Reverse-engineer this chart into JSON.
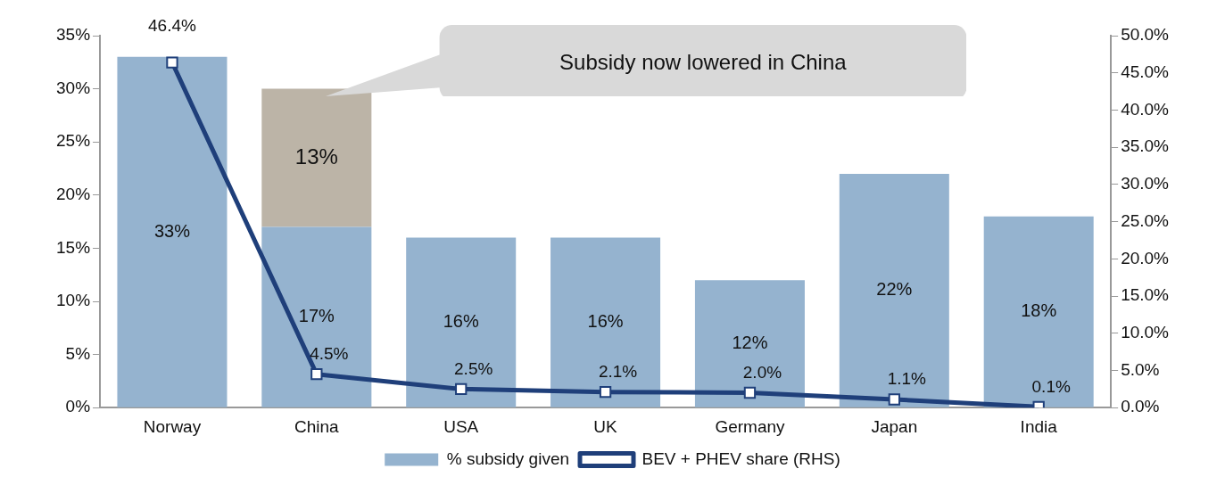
{
  "chart_data": {
    "type": "bar",
    "stacked": true,
    "categories": [
      "Norway",
      "China",
      "USA",
      "UK",
      "Germany",
      "Japan",
      "India"
    ],
    "series": [
      {
        "name": "% subsidy given",
        "color": "#95b3cf",
        "values": [
          33,
          17,
          16,
          16,
          12,
          22,
          18
        ],
        "value_labels": [
          "33%",
          "17%",
          "16%",
          "16%",
          "12%",
          "22%",
          "18%"
        ]
      },
      {
        "color": "#bcb4a7",
        "values": [
          null,
          13,
          null,
          null,
          null,
          null,
          null
        ],
        "value_labels": [
          null,
          "13%",
          null,
          null,
          null,
          null,
          null
        ]
      },
      {
        "name": "BEV + PHEV share (RHS)",
        "type": "line",
        "axis": "y2",
        "color": "#1f3f7a",
        "marker": "square",
        "values": [
          46.4,
          4.5,
          2.5,
          2.1,
          2.0,
          1.1,
          0.1
        ],
        "value_labels": [
          "46.4%",
          "4.5%",
          "2.5%",
          "2.1%",
          "2.0%",
          "1.1%",
          "0.1%"
        ]
      }
    ],
    "ylim": [
      0,
      35
    ],
    "yticks": [
      {
        "value": 0,
        "label": "0%"
      },
      {
        "value": 5,
        "label": "5%"
      },
      {
        "value": 10,
        "label": "10%"
      },
      {
        "value": 15,
        "label": "15%"
      },
      {
        "value": 20,
        "label": "20%"
      },
      {
        "value": 25,
        "label": "25%"
      },
      {
        "value": 30,
        "label": "30%"
      },
      {
        "value": 35,
        "label": "35%"
      }
    ],
    "y2lim": [
      0,
      50
    ],
    "y2ticks": [
      {
        "value": 0,
        "label": "0.0%"
      },
      {
        "value": 5,
        "label": "5.0%"
      },
      {
        "value": 10,
        "label": "10.0%"
      },
      {
        "value": 15,
        "label": "15.0%"
      },
      {
        "value": 20,
        "label": "20.0%"
      },
      {
        "value": 25,
        "label": "25.0%"
      },
      {
        "value": 30,
        "label": "30.0%"
      },
      {
        "value": 35,
        "label": "35.0%"
      },
      {
        "value": 40,
        "label": "40.0%"
      },
      {
        "value": 45,
        "label": "45.0%"
      },
      {
        "value": 50,
        "label": "50.0%"
      }
    ],
    "grid": false,
    "legend": "bottom",
    "annotations": [
      "Subsidy now lowered in China"
    ]
  }
}
